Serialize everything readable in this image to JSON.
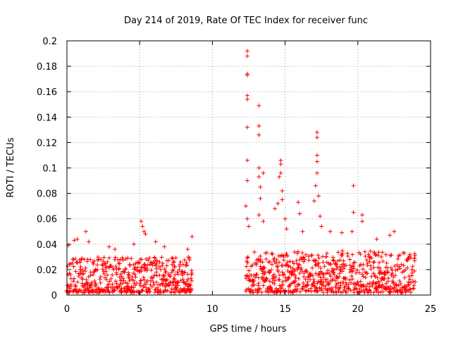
{
  "chart_data": {
    "type": "scatter",
    "title": "Day 214 of 2019, Rate Of TEC Index for receiver func",
    "xlabel": "GPS time / hours",
    "ylabel": "ROTI / TECUs",
    "xlim": [
      0,
      25
    ],
    "ylim": [
      0,
      0.2
    ],
    "x_ticks": [
      "0",
      "5",
      "10",
      "15",
      "20",
      "25"
    ],
    "y_ticks": [
      "0",
      "0.02",
      "0.04",
      "0.06",
      "0.08",
      "0.1",
      "0.12",
      "0.14",
      "0.16",
      "0.18",
      "0.2"
    ],
    "grid": true,
    "marker": "+",
    "color": "#ff0000",
    "segments": [
      {
        "x_start": 0.0,
        "x_end": 8.6,
        "baseline_min": 0.002,
        "baseline_max": 0.03
      },
      {
        "x_start": 12.3,
        "x_end": 24.0,
        "baseline_min": 0.002,
        "baseline_max": 0.035
      }
    ],
    "peaks": [
      {
        "x": 0.1,
        "y": 0.039
      },
      {
        "x": 0.5,
        "y": 0.043
      },
      {
        "x": 0.7,
        "y": 0.044
      },
      {
        "x": 1.3,
        "y": 0.05
      },
      {
        "x": 1.5,
        "y": 0.042
      },
      {
        "x": 2.9,
        "y": 0.038
      },
      {
        "x": 3.3,
        "y": 0.036
      },
      {
        "x": 4.6,
        "y": 0.04
      },
      {
        "x": 5.1,
        "y": 0.058
      },
      {
        "x": 5.2,
        "y": 0.054
      },
      {
        "x": 5.3,
        "y": 0.05
      },
      {
        "x": 5.4,
        "y": 0.048
      },
      {
        "x": 6.1,
        "y": 0.042
      },
      {
        "x": 6.7,
        "y": 0.038
      },
      {
        "x": 8.3,
        "y": 0.036
      },
      {
        "x": 8.6,
        "y": 0.046
      },
      {
        "x": 12.4,
        "y": 0.192
      },
      {
        "x": 12.4,
        "y": 0.188
      },
      {
        "x": 12.4,
        "y": 0.174
      },
      {
        "x": 12.4,
        "y": 0.173
      },
      {
        "x": 12.4,
        "y": 0.157
      },
      {
        "x": 12.4,
        "y": 0.154
      },
      {
        "x": 12.4,
        "y": 0.132
      },
      {
        "x": 12.4,
        "y": 0.106
      },
      {
        "x": 12.4,
        "y": 0.09
      },
      {
        "x": 12.3,
        "y": 0.07
      },
      {
        "x": 12.4,
        "y": 0.06
      },
      {
        "x": 12.5,
        "y": 0.054
      },
      {
        "x": 13.2,
        "y": 0.149
      },
      {
        "x": 13.2,
        "y": 0.133
      },
      {
        "x": 13.2,
        "y": 0.126
      },
      {
        "x": 13.2,
        "y": 0.1
      },
      {
        "x": 13.2,
        "y": 0.093
      },
      {
        "x": 13.3,
        "y": 0.085
      },
      {
        "x": 13.5,
        "y": 0.096
      },
      {
        "x": 13.3,
        "y": 0.076
      },
      {
        "x": 13.2,
        "y": 0.063
      },
      {
        "x": 13.5,
        "y": 0.058
      },
      {
        "x": 14.3,
        "y": 0.068
      },
      {
        "x": 14.7,
        "y": 0.106
      },
      {
        "x": 14.7,
        "y": 0.103
      },
      {
        "x": 14.7,
        "y": 0.096
      },
      {
        "x": 14.6,
        "y": 0.093
      },
      {
        "x": 14.8,
        "y": 0.082
      },
      {
        "x": 14.8,
        "y": 0.075
      },
      {
        "x": 14.5,
        "y": 0.072
      },
      {
        "x": 15.0,
        "y": 0.06
      },
      {
        "x": 15.1,
        "y": 0.052
      },
      {
        "x": 15.9,
        "y": 0.073
      },
      {
        "x": 16.0,
        "y": 0.064
      },
      {
        "x": 16.2,
        "y": 0.05
      },
      {
        "x": 17.0,
        "y": 0.074
      },
      {
        "x": 17.2,
        "y": 0.128
      },
      {
        "x": 17.2,
        "y": 0.124
      },
      {
        "x": 17.2,
        "y": 0.11
      },
      {
        "x": 17.2,
        "y": 0.105
      },
      {
        "x": 17.2,
        "y": 0.096
      },
      {
        "x": 17.1,
        "y": 0.086
      },
      {
        "x": 17.3,
        "y": 0.078
      },
      {
        "x": 17.4,
        "y": 0.062
      },
      {
        "x": 17.5,
        "y": 0.054
      },
      {
        "x": 18.1,
        "y": 0.05
      },
      {
        "x": 18.9,
        "y": 0.049
      },
      {
        "x": 19.7,
        "y": 0.086
      },
      {
        "x": 19.7,
        "y": 0.065
      },
      {
        "x": 19.6,
        "y": 0.05
      },
      {
        "x": 20.3,
        "y": 0.063
      },
      {
        "x": 20.3,
        "y": 0.058
      },
      {
        "x": 21.3,
        "y": 0.044
      },
      {
        "x": 22.2,
        "y": 0.047
      },
      {
        "x": 22.5,
        "y": 0.05
      },
      {
        "x": 23.2,
        "y": 0.033
      },
      {
        "x": 23.9,
        "y": 0.029
      }
    ]
  }
}
